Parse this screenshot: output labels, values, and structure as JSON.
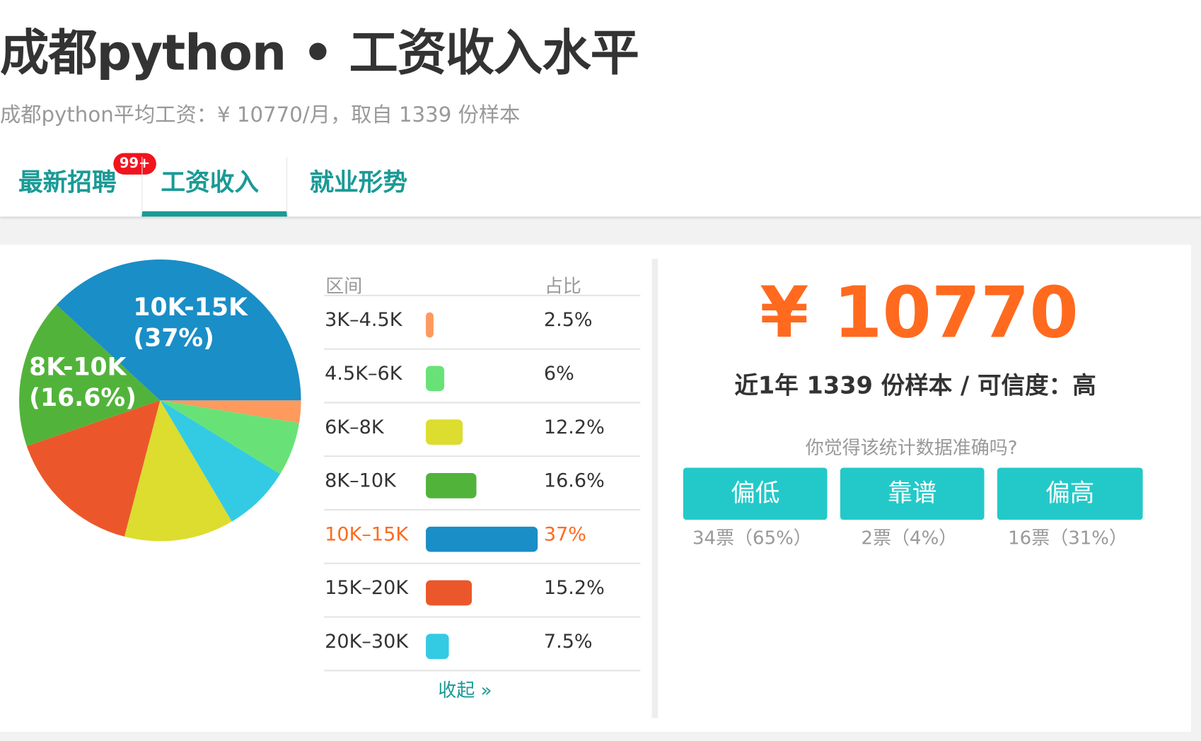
{
  "header": {
    "title": "成都python • 工资收入水平",
    "subtitle": "成都python平均工资：¥ 10770/月，取自 1339 份样本"
  },
  "tabs": [
    {
      "label": "最新招聘",
      "badge": "99+"
    },
    {
      "label": "工资收入",
      "active": true
    },
    {
      "label": "就业形势"
    }
  ],
  "chart_data": {
    "type": "pie",
    "categories": [
      "3K-4.5K",
      "4.5K-6K",
      "20K-30K",
      "6K-8K",
      "15K-20K",
      "8K-10K",
      "10K-15K"
    ],
    "values": [
      2.5,
      6,
      7.5,
      12.2,
      15.2,
      16.6,
      37
    ],
    "colors": [
      "#fe9a5e",
      "#68e276",
      "#33cbe3",
      "#dcdd2e",
      "#eb572b",
      "#52b33b",
      "#1a8ec6"
    ],
    "labels": [
      {
        "name": "10K-15K",
        "pct": "(37%)"
      },
      {
        "name": "8K-10K",
        "pct": "(16.6%)"
      }
    ]
  },
  "table": {
    "headers": [
      "区间",
      "占比"
    ],
    "rows": [
      {
        "range": "3K–4.5K",
        "pct": "2.5%",
        "value": 2.5,
        "color": "#fe9a5e"
      },
      {
        "range": "4.5K–6K",
        "pct": "6%",
        "value": 6,
        "color": "#68e276"
      },
      {
        "range": "6K–8K",
        "pct": "12.2%",
        "value": 12.2,
        "color": "#dcdd2e"
      },
      {
        "range": "8K–10K",
        "pct": "16.6%",
        "value": 16.6,
        "color": "#52b33b"
      },
      {
        "range": "10K–15K",
        "pct": "37%",
        "value": 37,
        "color": "#1a8ec6",
        "highlight": true
      },
      {
        "range": "15K–20K",
        "pct": "15.2%",
        "value": 15.2,
        "color": "#eb572b"
      },
      {
        "range": "20K–30K",
        "pct": "7.5%",
        "value": 7.5,
        "color": "#33cbe3"
      }
    ],
    "collapse": "收起 »"
  },
  "summary": {
    "salary": "¥ 10770",
    "meta": "近1年 1339 份样本 / 可信度：高",
    "question": "你觉得该统计数据准确吗?",
    "votes": [
      {
        "label": "偏低",
        "count": "34票（65%）"
      },
      {
        "label": "靠谱",
        "count": "2票（4%）"
      },
      {
        "label": "偏高",
        "count": "16票（31%）"
      }
    ]
  }
}
